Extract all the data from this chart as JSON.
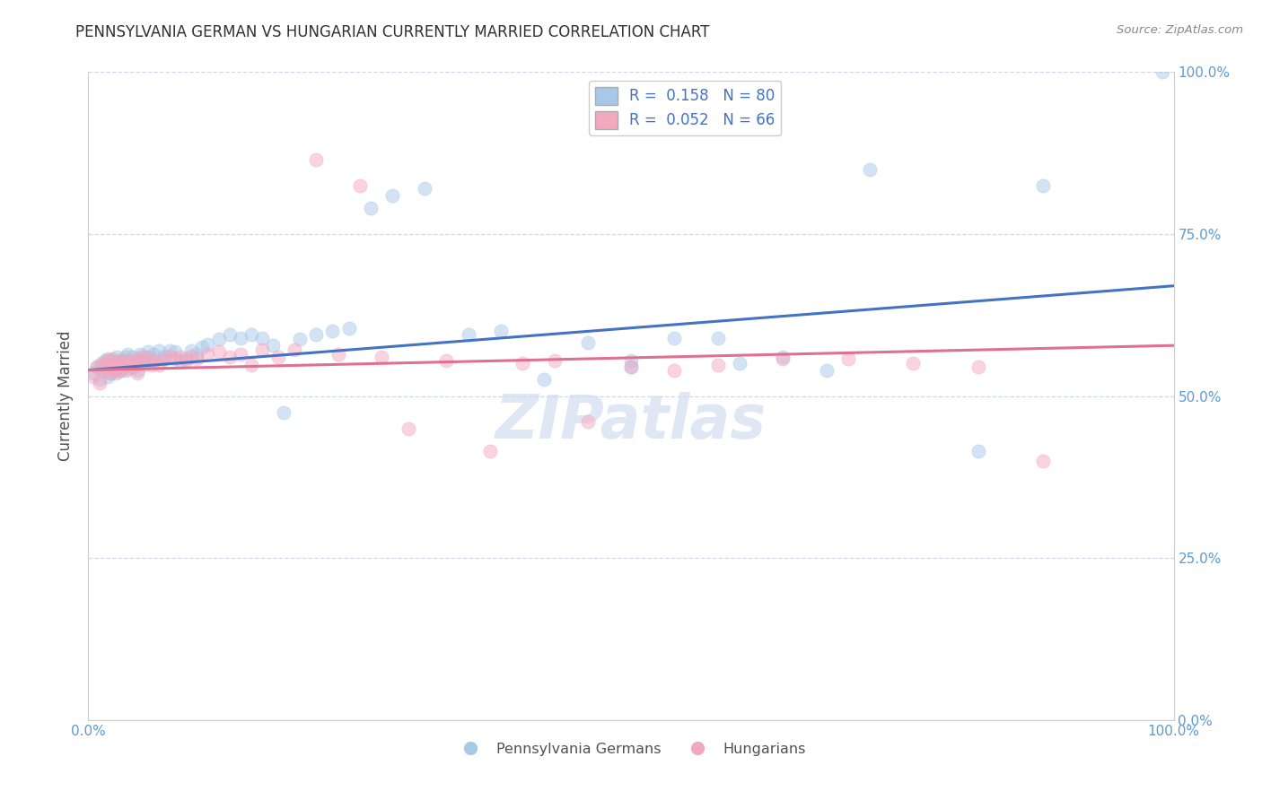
{
  "title": "PENNSYLVANIA GERMAN VS HUNGARIAN CURRENTLY MARRIED CORRELATION CHART",
  "source_text": "Source: ZipAtlas.com",
  "ylabel": "Currently Married",
  "watermark": "ZIPatlas",
  "legend_r1": "R =  0.158",
  "legend_n1": "N = 80",
  "legend_r2": "R =  0.052",
  "legend_n2": "N = 66",
  "xlim": [
    0.0,
    1.0
  ],
  "ylim": [
    0.0,
    1.0
  ],
  "xtick_labels": [
    "0.0%",
    "100.0%"
  ],
  "ytick_labels": [
    "0.0%",
    "25.0%",
    "50.0%",
    "75.0%",
    "100.0%"
  ],
  "ytick_positions": [
    0.0,
    0.25,
    0.5,
    0.75,
    1.0
  ],
  "blue_color": "#a8c8e8",
  "pink_color": "#f4a8c0",
  "blue_line_color": "#4472c4",
  "pink_line_color": "#e07090",
  "title_color": "#303030",
  "source_color": "#888888",
  "axis_label_color": "#505050",
  "tick_label_color": "#5b9bd5",
  "legend_text_color": "#4472c4",
  "grid_color": "#d0d8e8",
  "blue_scatter_x": [
    0.005,
    0.008,
    0.01,
    0.012,
    0.014,
    0.015,
    0.016,
    0.018,
    0.018,
    0.02,
    0.02,
    0.022,
    0.022,
    0.024,
    0.025,
    0.025,
    0.026,
    0.028,
    0.028,
    0.03,
    0.03,
    0.032,
    0.032,
    0.034,
    0.035,
    0.036,
    0.036,
    0.038,
    0.04,
    0.04,
    0.042,
    0.044,
    0.045,
    0.046,
    0.048,
    0.05,
    0.052,
    0.055,
    0.058,
    0.06,
    0.065,
    0.068,
    0.07,
    0.075,
    0.08,
    0.085,
    0.09,
    0.095,
    0.1,
    0.105,
    0.11,
    0.12,
    0.13,
    0.14,
    0.15,
    0.16,
    0.17,
    0.18,
    0.195,
    0.21,
    0.225,
    0.24,
    0.26,
    0.28,
    0.31,
    0.35,
    0.38,
    0.42,
    0.46,
    0.5,
    0.5,
    0.54,
    0.58,
    0.6,
    0.64,
    0.68,
    0.72,
    0.82,
    0.88,
    0.99
  ],
  "blue_scatter_y": [
    0.535,
    0.545,
    0.525,
    0.55,
    0.54,
    0.555,
    0.545,
    0.53,
    0.558,
    0.535,
    0.548,
    0.54,
    0.555,
    0.55,
    0.545,
    0.535,
    0.56,
    0.545,
    0.555,
    0.54,
    0.55,
    0.545,
    0.555,
    0.56,
    0.54,
    0.555,
    0.565,
    0.548,
    0.55,
    0.56,
    0.545,
    0.555,
    0.54,
    0.558,
    0.565,
    0.555,
    0.56,
    0.568,
    0.555,
    0.565,
    0.57,
    0.558,
    0.562,
    0.57,
    0.568,
    0.555,
    0.558,
    0.57,
    0.565,
    0.575,
    0.58,
    0.588,
    0.595,
    0.59,
    0.595,
    0.59,
    0.578,
    0.475,
    0.588,
    0.595,
    0.6,
    0.605,
    0.79,
    0.81,
    0.82,
    0.595,
    0.6,
    0.525,
    0.582,
    0.555,
    0.545,
    0.59,
    0.59,
    0.55,
    0.56,
    0.54,
    0.85,
    0.415,
    0.825,
    1.0
  ],
  "pink_scatter_x": [
    0.005,
    0.008,
    0.01,
    0.012,
    0.014,
    0.016,
    0.018,
    0.018,
    0.02,
    0.022,
    0.022,
    0.024,
    0.025,
    0.026,
    0.028,
    0.03,
    0.03,
    0.032,
    0.034,
    0.036,
    0.038,
    0.04,
    0.042,
    0.044,
    0.045,
    0.046,
    0.048,
    0.05,
    0.052,
    0.055,
    0.058,
    0.06,
    0.065,
    0.07,
    0.075,
    0.08,
    0.085,
    0.09,
    0.095,
    0.1,
    0.11,
    0.12,
    0.13,
    0.14,
    0.15,
    0.16,
    0.175,
    0.19,
    0.21,
    0.23,
    0.25,
    0.27,
    0.295,
    0.33,
    0.37,
    0.4,
    0.43,
    0.46,
    0.5,
    0.54,
    0.58,
    0.64,
    0.7,
    0.76,
    0.82,
    0.88
  ],
  "pink_scatter_y": [
    0.53,
    0.545,
    0.52,
    0.548,
    0.538,
    0.55,
    0.542,
    0.555,
    0.535,
    0.548,
    0.558,
    0.54,
    0.545,
    0.552,
    0.538,
    0.542,
    0.555,
    0.548,
    0.555,
    0.542,
    0.55,
    0.545,
    0.555,
    0.548,
    0.535,
    0.555,
    0.56,
    0.548,
    0.552,
    0.56,
    0.548,
    0.555,
    0.548,
    0.558,
    0.562,
    0.558,
    0.56,
    0.555,
    0.562,
    0.558,
    0.565,
    0.568,
    0.56,
    0.565,
    0.548,
    0.572,
    0.56,
    0.572,
    0.865,
    0.565,
    0.825,
    0.56,
    0.45,
    0.555,
    0.415,
    0.55,
    0.555,
    0.46,
    0.545,
    0.54,
    0.548,
    0.558,
    0.558,
    0.55,
    0.545,
    0.4
  ],
  "blue_trend_x": [
    0.0,
    1.0
  ],
  "blue_trend_y": [
    0.54,
    0.67
  ],
  "pink_trend_x": [
    0.0,
    1.0
  ],
  "pink_trend_y": [
    0.54,
    0.578
  ],
  "scatter_size": 120,
  "scatter_alpha": 0.5,
  "figsize": [
    14.06,
    8.92
  ],
  "dpi": 100
}
